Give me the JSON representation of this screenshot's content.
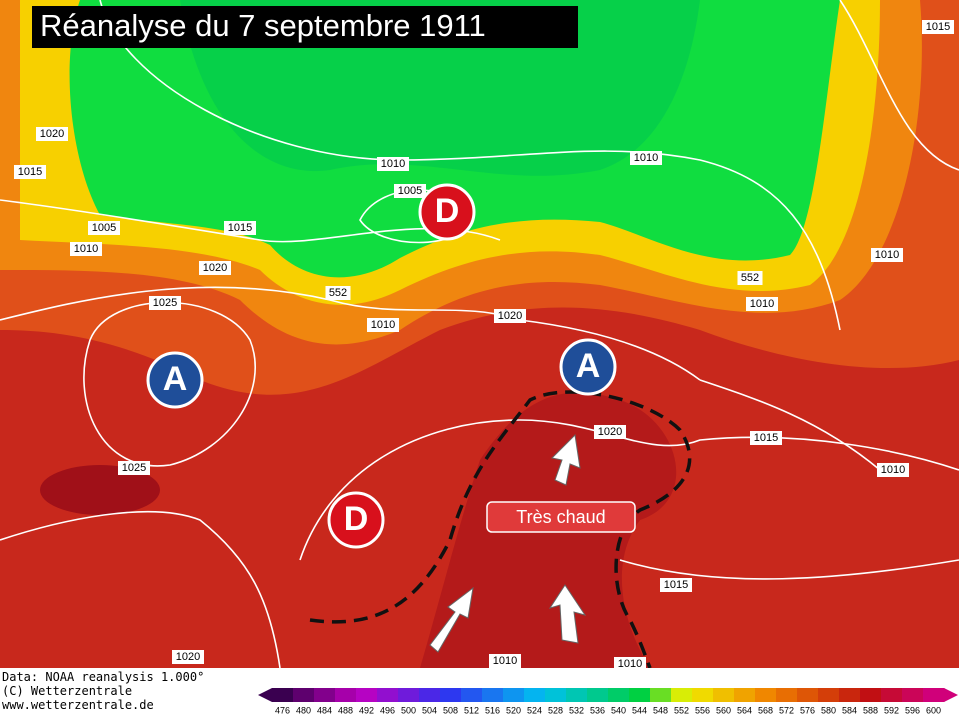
{
  "title": "Réanalyse du 7 septembre 1911",
  "centers": [
    "A",
    "D",
    "A",
    "D"
  ],
  "callout": "Très chaud",
  "isobar_labels": [
    1015,
    1020,
    1015,
    1005,
    1010,
    1010,
    1005,
    1015,
    1020,
    552,
    1025,
    1010,
    1020,
    1010,
    1010,
    552,
    1010,
    1015,
    1020,
    1025,
    1010,
    1015,
    1020,
    1010,
    1010
  ],
  "footer": [
    "Data: NOAA reanalysis 1.000°",
    "(C) Wetterzentrale",
    "www.wetterzentrale.de"
  ],
  "scale": [
    476,
    480,
    484,
    488,
    492,
    496,
    500,
    504,
    508,
    512,
    516,
    520,
    524,
    528,
    532,
    536,
    540,
    544,
    548,
    552,
    556,
    560,
    564,
    568,
    572,
    576,
    580,
    584,
    588,
    592,
    596,
    600
  ]
}
